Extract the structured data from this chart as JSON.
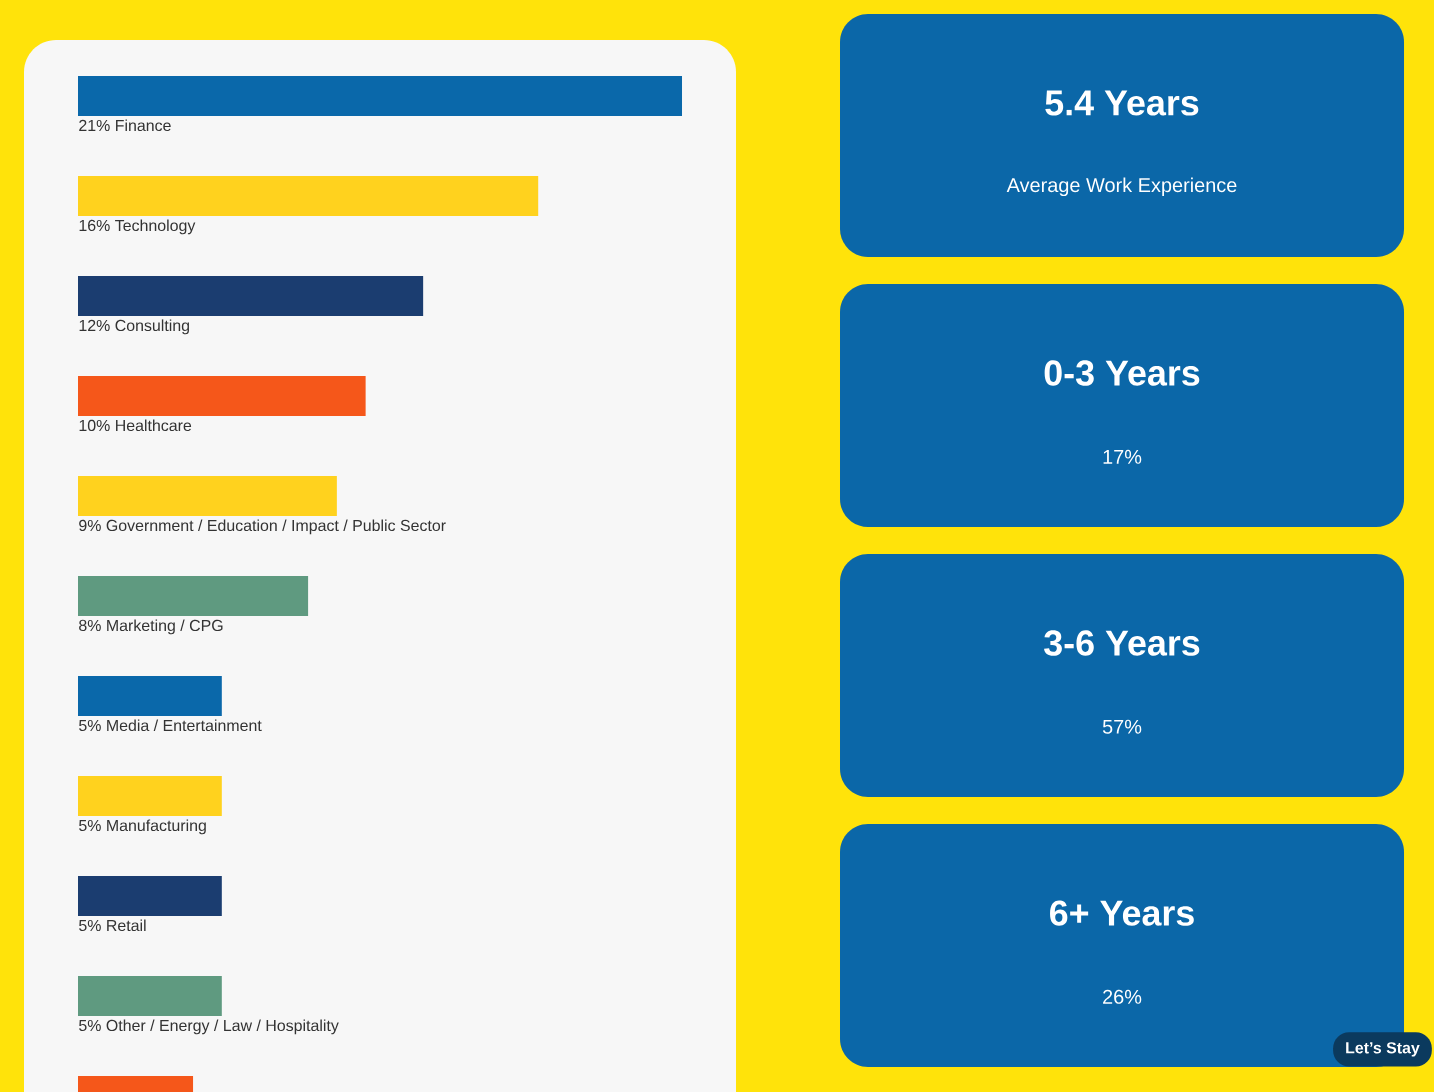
{
  "chart_data": [
    {
      "type": "bar",
      "orientation": "horizontal",
      "categories": [
        "Finance",
        "Technology",
        "Consulting",
        "Healthcare",
        "Government / Education / Impact / Public Sector",
        "Marketing / CPG",
        "Media / Entertainment",
        "Manufacturing",
        "Retail",
        "Other / Energy / Law / Hospitality",
        null
      ],
      "values": [
        21,
        16,
        12,
        10,
        9,
        8,
        5,
        5,
        5,
        5,
        4
      ],
      "value_labels": [
        "21%",
        "16%",
        "12%",
        "10%",
        "9%",
        "8%",
        "5%",
        "5%",
        "5%",
        "5%",
        null
      ],
      "colors": [
        "#0a68aa",
        "#ffd21e",
        "#1b3d70",
        "#f5571a",
        "#ffd21e",
        "#5f9a80",
        "#0a68aa",
        "#ffd21e",
        "#1b3d70",
        "#5f9a80",
        "#f5571a"
      ]
    },
    {
      "type": "other",
      "annotations": [
        "5.4 Years",
        "Average Work Experience",
        "0-3 Years",
        "17%",
        "3-6 Years",
        "57%",
        "6+ Years",
        "26%",
        "Let’s Stay"
      ]
    }
  ]
}
